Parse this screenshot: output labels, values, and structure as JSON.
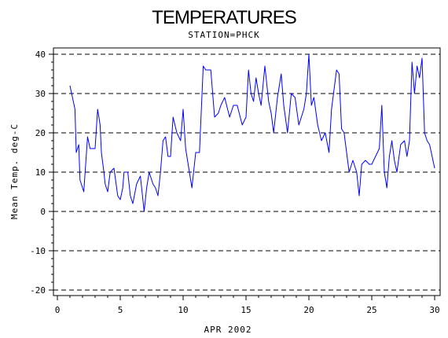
{
  "chart_data": {
    "type": "line",
    "title": "TEMPERATURES",
    "subtitle": "STATION=PHCK",
    "xlabel": "APR 2002",
    "ylabel": "Mean Temp. deg-C",
    "xlim": [
      0,
      30
    ],
    "ylim": [
      -20,
      40
    ],
    "x_ticks": [
      0,
      5,
      10,
      15,
      20,
      25,
      30
    ],
    "y_ticks": [
      -20,
      -10,
      0,
      10,
      20,
      30,
      40
    ],
    "gridlines": "horizontal dashed at each y tick",
    "series_color": "#0000ff",
    "series": [
      {
        "x": [
          1.0,
          1.4,
          1.5,
          1.7,
          1.8,
          2.1,
          2.4,
          2.6,
          2.8,
          3.0,
          3.2,
          3.4,
          3.5,
          3.7,
          3.8,
          4.0,
          4.2,
          4.5,
          4.8,
          5.0,
          5.2,
          5.3,
          5.6,
          5.8,
          6.0,
          6.3,
          6.6,
          6.9,
          7.1,
          7.3,
          7.6,
          7.8,
          8.0,
          8.2,
          8.4,
          8.6,
          8.8,
          9.0,
          9.2,
          9.5,
          9.8,
          10.0,
          10.2,
          10.4,
          10.7,
          11.0,
          11.3,
          11.6,
          11.8,
          12.2,
          12.5,
          12.8,
          13.0,
          13.3,
          13.7,
          14.0,
          14.3,
          14.7,
          15.0,
          15.2,
          15.4,
          15.6,
          15.8,
          16.0,
          16.2,
          16.5,
          16.8,
          17.0,
          17.2,
          17.5,
          17.8,
          18.0,
          18.3,
          18.6,
          18.9,
          19.2,
          19.6,
          19.8,
          20.0,
          20.2,
          20.4,
          20.7,
          21.0,
          21.3,
          21.6,
          21.8,
          22.2,
          22.4,
          22.6,
          22.8,
          23.0,
          23.2,
          23.5,
          23.8,
          24.0,
          24.2,
          24.5,
          24.8,
          25.0,
          25.3,
          25.6,
          25.8,
          26.0,
          26.2,
          26.4,
          26.6,
          26.8,
          27.0,
          27.3,
          27.6,
          27.8,
          28.0,
          28.2,
          28.4,
          28.6,
          28.8,
          29.0,
          29.2,
          29.4,
          29.6,
          29.8,
          30.0
        ],
        "y": [
          32,
          26,
          15,
          17,
          8,
          5,
          19,
          16,
          16,
          16,
          26,
          22,
          15,
          10,
          7,
          5,
          10,
          11,
          4,
          3,
          6,
          10,
          10,
          4,
          2,
          7,
          9,
          0,
          6,
          10,
          7,
          6,
          4,
          10,
          18,
          19,
          14,
          14,
          24,
          20,
          18,
          26,
          16,
          12,
          6,
          15,
          15,
          37,
          36,
          36,
          24,
          25,
          27,
          29,
          24,
          27,
          27,
          22,
          24,
          36,
          30,
          28,
          34,
          30,
          27,
          37,
          28,
          25,
          20,
          29,
          35,
          27,
          20,
          30,
          29,
          22,
          26,
          30,
          40,
          27,
          29,
          22,
          18,
          20,
          15,
          26,
          36,
          35,
          21,
          20,
          15,
          10,
          13,
          10,
          4,
          12,
          13,
          12,
          12,
          14,
          16,
          27,
          10,
          6,
          14,
          18,
          13,
          10,
          17,
          18,
          14,
          18,
          38,
          30,
          37,
          34,
          39,
          20,
          18,
          17,
          14,
          11
        ]
      }
    ]
  }
}
